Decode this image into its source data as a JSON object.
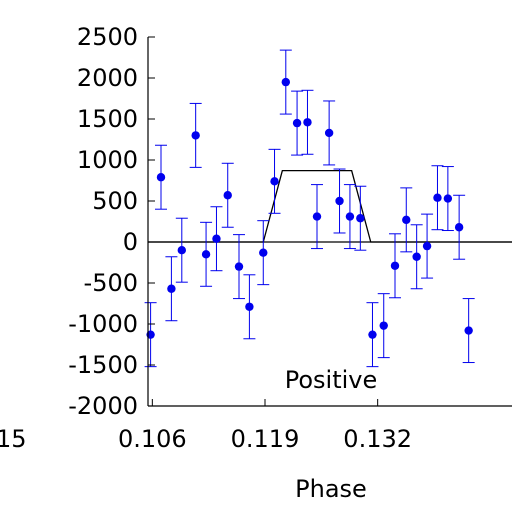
{
  "chart_data": {
    "type": "scatter",
    "xlabel": "Phase",
    "ylabel": "",
    "annotation": "Positive",
    "left_cut_tick_label": "15",
    "xlim": [
      0.1055,
      0.1475
    ],
    "ylim": [
      -2000,
      2500
    ],
    "x_ticks": [
      0.106,
      0.119,
      0.132
    ],
    "x_tick_labels": [
      "0.106",
      "0.119",
      "0.132"
    ],
    "y_ticks": [
      -2000,
      -1500,
      -1000,
      -500,
      0,
      500,
      1000,
      1500,
      2000,
      2500
    ],
    "y_tick_labels": [
      "-2000",
      "-1500",
      "-1000",
      "-500",
      "0",
      "500",
      "1000",
      "1500",
      "2000",
      "2500"
    ],
    "colors": {
      "points": "#0000ee",
      "model": "#000000",
      "axis": "#000000"
    },
    "series": [
      {
        "kind": "errorbar-points",
        "points": [
          {
            "x": 0.1058,
            "y": -1130,
            "err": 390
          },
          {
            "x": 0.107,
            "y": 790,
            "err": 390
          },
          {
            "x": 0.1082,
            "y": -570,
            "err": 390
          },
          {
            "x": 0.1094,
            "y": -100,
            "err": 390
          },
          {
            "x": 0.111,
            "y": 1300,
            "err": 390
          },
          {
            "x": 0.1122,
            "y": -150,
            "err": 390
          },
          {
            "x": 0.1134,
            "y": 40,
            "err": 390
          },
          {
            "x": 0.1147,
            "y": 570,
            "err": 390
          },
          {
            "x": 0.116,
            "y": -300,
            "err": 390
          },
          {
            "x": 0.1172,
            "y": -790,
            "err": 390
          },
          {
            "x": 0.1188,
            "y": -130,
            "err": 390
          },
          {
            "x": 0.1201,
            "y": 740,
            "err": 390
          },
          {
            "x": 0.1214,
            "y": 1950,
            "err": 390
          },
          {
            "x": 0.1227,
            "y": 1450,
            "err": 390
          },
          {
            "x": 0.1239,
            "y": 1460,
            "err": 390
          },
          {
            "x": 0.125,
            "y": 310,
            "err": 390
          },
          {
            "x": 0.1264,
            "y": 1330,
            "err": 390
          },
          {
            "x": 0.1276,
            "y": 500,
            "err": 390
          },
          {
            "x": 0.1288,
            "y": 310,
            "err": 390
          },
          {
            "x": 0.13,
            "y": 290,
            "err": 390
          },
          {
            "x": 0.1314,
            "y": -1130,
            "err": 390
          },
          {
            "x": 0.1327,
            "y": -1020,
            "err": 390
          },
          {
            "x": 0.134,
            "y": -290,
            "err": 390
          },
          {
            "x": 0.1353,
            "y": 270,
            "err": 390
          },
          {
            "x": 0.1365,
            "y": -180,
            "err": 390
          },
          {
            "x": 0.1377,
            "y": -50,
            "err": 390
          },
          {
            "x": 0.1389,
            "y": 540,
            "err": 390
          },
          {
            "x": 0.1401,
            "y": 530,
            "err": 390
          },
          {
            "x": 0.1414,
            "y": 180,
            "err": 390
          },
          {
            "x": 0.1425,
            "y": -1080,
            "err": 390
          }
        ]
      },
      {
        "kind": "model-line",
        "points": [
          {
            "x": 0.1055,
            "y": 0
          },
          {
            "x": 0.1188,
            "y": 0
          },
          {
            "x": 0.121,
            "y": 870
          },
          {
            "x": 0.129,
            "y": 870
          },
          {
            "x": 0.1312,
            "y": 0
          },
          {
            "x": 0.1475,
            "y": 0
          }
        ]
      }
    ]
  }
}
